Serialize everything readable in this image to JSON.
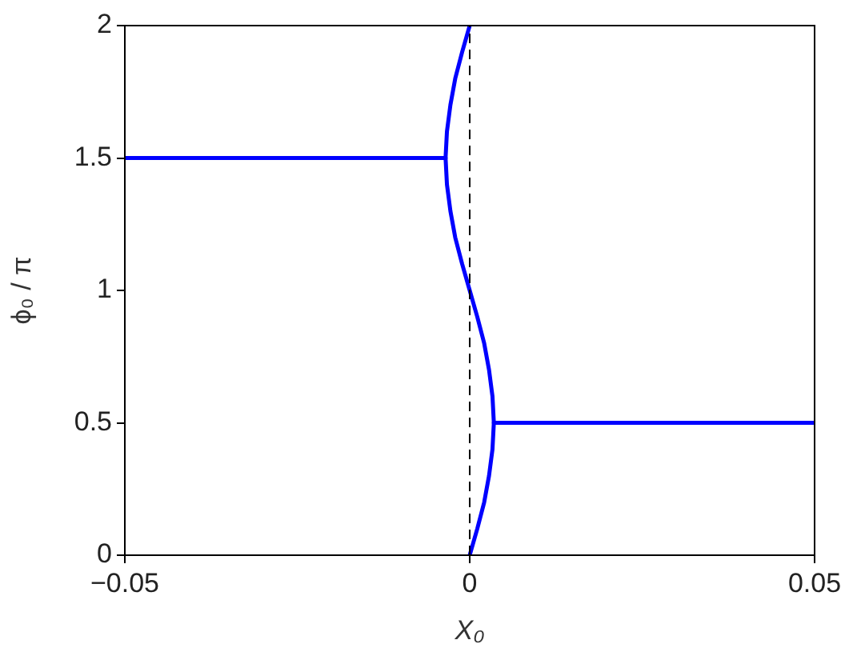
{
  "chart_data": {
    "type": "line",
    "xlabel": "X₀",
    "ylabel": "ϕ₀ / π",
    "series": [
      {
        "color": "#0000ff",
        "x": [
          -0.05,
          -0.0035
        ],
        "values": [
          1.5,
          1.5
        ]
      },
      {
        "color": "#0000ff",
        "x": [
          0.0035,
          0.05
        ],
        "values": [
          0.5,
          0.5
        ]
      },
      {
        "color": "#0000ff",
        "x": [
          0,
          0.0011,
          0.0021,
          0.0028,
          0.0033,
          0.0035,
          0.0033,
          0.0028,
          0.0021,
          0.0011,
          0,
          -0.0011,
          -0.0021,
          -0.0028,
          -0.0033,
          -0.0035,
          -0.0033,
          -0.0028,
          -0.0021,
          -0.0011,
          0
        ],
        "values": [
          0,
          0.1,
          0.2,
          0.3,
          0.4,
          0.5,
          0.6,
          0.7,
          0.8,
          0.9,
          1,
          1.1,
          1.2,
          1.3,
          1.4,
          1.5,
          1.6,
          1.7,
          1.8,
          1.9,
          2
        ]
      }
    ],
    "ref_lines": [
      {
        "axis": "x",
        "value": 0,
        "color": "#000000",
        "line_style": "dashed"
      }
    ],
    "xlim": [
      -0.05,
      0.05
    ],
    "xticks": [
      {
        "value": -0.05,
        "label": "−0.05"
      },
      0,
      0.05
    ],
    "ylim": [
      0,
      2
    ],
    "yticks": [
      0,
      0.5,
      1,
      1.5,
      2
    ],
    "grid": false,
    "legend": false,
    "marker": "none",
    "line_style": "solid"
  }
}
